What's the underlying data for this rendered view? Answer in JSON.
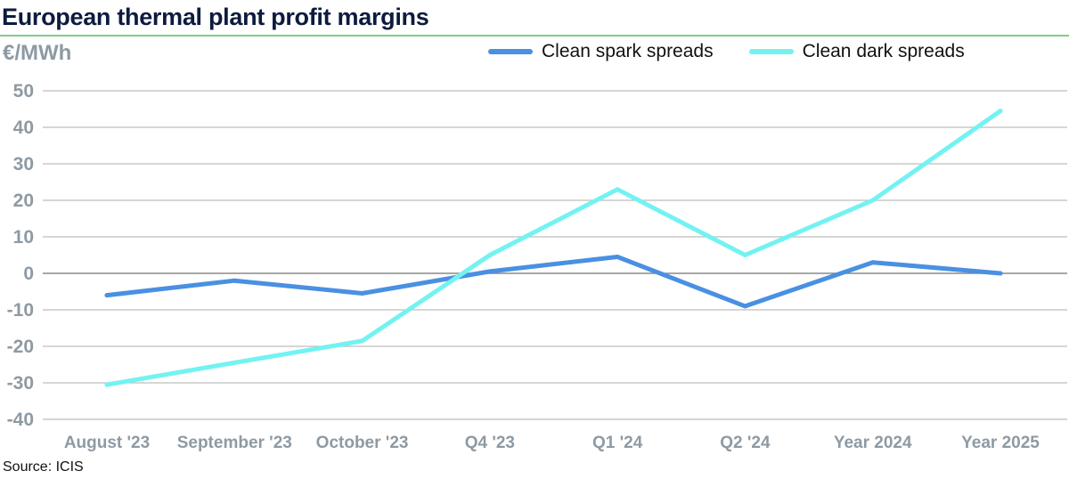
{
  "chart_data": {
    "type": "line",
    "title": "European thermal plant profit margins",
    "ylabel": "€/MWh",
    "xlabel": "",
    "categories": [
      "August '23",
      "September '23",
      "October '23",
      "Q4 '23",
      "Q1 '24",
      "Q2 '24",
      "Year 2024",
      "Year 2025"
    ],
    "ylim": [
      -40,
      50
    ],
    "yticks": [
      50,
      40,
      30,
      20,
      10,
      0,
      -10,
      -20,
      -30,
      -40
    ],
    "grid": true,
    "legend_position": "top-right",
    "series": [
      {
        "name": "Clean spark spreads",
        "color": "#4a90e2",
        "values": [
          -6,
          -2,
          -5.5,
          0.5,
          4.5,
          -9,
          3,
          0
        ]
      },
      {
        "name": "Clean dark spreads",
        "color": "#74f2f2",
        "values": [
          -30.5,
          -24.5,
          -18.5,
          5,
          23,
          5,
          20,
          44.5
        ]
      }
    ],
    "source": "Source: ICIS"
  }
}
